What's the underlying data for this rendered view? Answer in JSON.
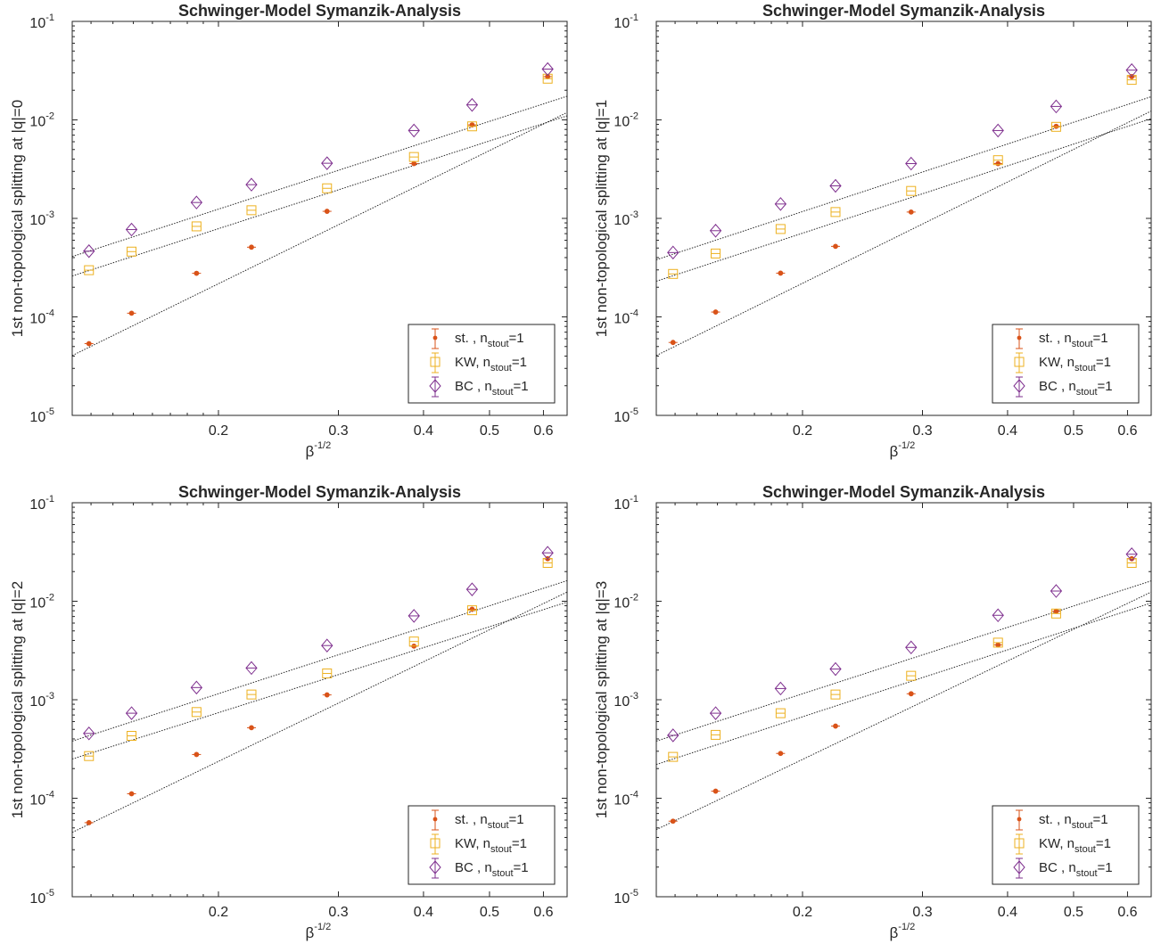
{
  "chart_data": [
    {
      "type": "scatter",
      "title": "Schwinger-Model Symanzik-Analysis",
      "xlabel_base": "β",
      "xlabel_exp": "-1/2",
      "ylabel": "1st non-topological splitting at |q|=0",
      "xscale": "log",
      "yscale": "log",
      "xlim": [
        0.122,
        0.65
      ],
      "ylim": [
        1e-05,
        0.1
      ],
      "xticks": [
        0.2,
        0.3,
        0.4,
        0.5,
        0.6
      ],
      "xtick_labels": [
        "0.2",
        "0.3",
        "0.4",
        "0.5",
        "0.6"
      ],
      "yticks": [
        1e-05,
        0.0001,
        0.001,
        0.01,
        0.1
      ],
      "ytick_base": [
        "10",
        "10",
        "10",
        "10",
        "10"
      ],
      "ytick_exp": [
        "-5",
        "-4",
        "-3",
        "-2",
        "-1"
      ],
      "grid": false,
      "legend_position": "bottom-right",
      "x": [
        0.1291,
        0.1491,
        0.1857,
        0.2236,
        0.2887,
        0.3873,
        0.4714,
        0.6086
      ],
      "series": [
        {
          "name": "st. , n",
          "name_sub": "stout",
          "name_tail": "=1",
          "marker": "dot",
          "color": "#d95319",
          "values": [
            5.35e-05,
            0.000109,
            0.000277,
            0.00051,
            0.00118,
            0.0036,
            0.0089,
            0.0275
          ],
          "fit": [
            4.05e-05,
            0.0119
          ]
        },
        {
          "name": "KW, n",
          "name_sub": "stout",
          "name_tail": "=1",
          "marker": "square",
          "color": "#edb120",
          "values": [
            0.000298,
            0.00046,
            0.00083,
            0.00121,
            0.00202,
            0.0042,
            0.0086,
            0.0262
          ],
          "fit": [
            0.00026,
            0.011
          ]
        },
        {
          "name": "BC , n",
          "name_sub": "stout",
          "name_tail": "=1",
          "marker": "diamond",
          "color": "#7e2f8e",
          "values": [
            0.000465,
            0.00077,
            0.00145,
            0.0022,
            0.00363,
            0.0078,
            0.0142,
            0.0328
          ],
          "fit": [
            0.00041,
            0.0174
          ]
        }
      ]
    },
    {
      "type": "scatter",
      "title": "Schwinger-Model Symanzik-Analysis",
      "xlabel_base": "β",
      "xlabel_exp": "-1/2",
      "ylabel": "1st non-topological splitting at |q|=1",
      "xscale": "log",
      "yscale": "log",
      "xlim": [
        0.122,
        0.65
      ],
      "ylim": [
        1e-05,
        0.1
      ],
      "xticks": [
        0.2,
        0.3,
        0.4,
        0.5,
        0.6
      ],
      "xtick_labels": [
        "0.2",
        "0.3",
        "0.4",
        "0.5",
        "0.6"
      ],
      "yticks": [
        1e-05,
        0.0001,
        0.001,
        0.01,
        0.1
      ],
      "ytick_base": [
        "10",
        "10",
        "10",
        "10",
        "10"
      ],
      "ytick_exp": [
        "-5",
        "-4",
        "-3",
        "-2",
        "-1"
      ],
      "grid": false,
      "legend_position": "bottom-right",
      "x": [
        0.1291,
        0.1491,
        0.1857,
        0.2236,
        0.2887,
        0.3873,
        0.4714,
        0.6086
      ],
      "series": [
        {
          "name": "st. , n",
          "name_sub": "stout",
          "name_tail": "=1",
          "marker": "dot",
          "color": "#d95319",
          "values": [
            5.5e-05,
            0.000112,
            0.000278,
            0.00052,
            0.00116,
            0.0036,
            0.0086,
            0.0275
          ],
          "fit": [
            4.05e-05,
            0.0123
          ]
        },
        {
          "name": "KW, n",
          "name_sub": "stout",
          "name_tail": "=1",
          "marker": "square",
          "color": "#edb120",
          "values": [
            0.000273,
            0.00044,
            0.00078,
            0.00116,
            0.0019,
            0.0039,
            0.0085,
            0.0255
          ],
          "fit": [
            0.00023,
            0.0103
          ]
        },
        {
          "name": "BC , n",
          "name_sub": "stout",
          "name_tail": "=1",
          "marker": "diamond",
          "color": "#7e2f8e",
          "values": [
            0.00045,
            0.00075,
            0.0014,
            0.00214,
            0.0036,
            0.0078,
            0.0137,
            0.032
          ],
          "fit": [
            0.00038,
            0.0172
          ]
        }
      ]
    },
    {
      "type": "scatter",
      "title": "Schwinger-Model Symanzik-Analysis",
      "xlabel_base": "β",
      "xlabel_exp": "-1/2",
      "ylabel": "1st non-topological splitting at |q|=2",
      "xscale": "log",
      "yscale": "log",
      "xlim": [
        0.122,
        0.65
      ],
      "ylim": [
        1e-05,
        0.1
      ],
      "xticks": [
        0.2,
        0.3,
        0.4,
        0.5,
        0.6
      ],
      "xtick_labels": [
        "0.2",
        "0.3",
        "0.4",
        "0.5",
        "0.6"
      ],
      "yticks": [
        1e-05,
        0.0001,
        0.001,
        0.01,
        0.1
      ],
      "ytick_base": [
        "10",
        "10",
        "10",
        "10",
        "10"
      ],
      "ytick_exp": [
        "-5",
        "-4",
        "-3",
        "-2",
        "-1"
      ],
      "grid": false,
      "legend_position": "bottom-right",
      "x": [
        0.1291,
        0.1491,
        0.1857,
        0.2236,
        0.2887,
        0.3873,
        0.4714,
        0.6086
      ],
      "series": [
        {
          "name": "st. , n",
          "name_sub": "stout",
          "name_tail": "=1",
          "marker": "dot",
          "color": "#d95319",
          "values": [
            5.65e-05,
            0.000111,
            0.000278,
            0.00052,
            0.00112,
            0.0035,
            0.0083,
            0.027
          ],
          "fit": [
            4.5e-05,
            0.0124
          ]
        },
        {
          "name": "KW, n",
          "name_sub": "stout",
          "name_tail": "=1",
          "marker": "square",
          "color": "#edb120",
          "values": [
            0.000268,
            0.00043,
            0.00075,
            0.00113,
            0.00185,
            0.0039,
            0.0081,
            0.0245
          ],
          "fit": [
            0.00025,
            0.0098
          ]
        },
        {
          "name": "BC , n",
          "name_sub": "stout",
          "name_tail": "=1",
          "marker": "diamond",
          "color": "#7e2f8e",
          "values": [
            0.000455,
            0.00073,
            0.00133,
            0.0021,
            0.00355,
            0.0071,
            0.0132,
            0.031
          ],
          "fit": [
            0.00038,
            0.0162
          ]
        }
      ]
    },
    {
      "type": "scatter",
      "title": "Schwinger-Model Symanzik-Analysis",
      "xlabel_base": "β",
      "xlabel_exp": "-1/2",
      "ylabel": "1st non-topological splitting at |q|=3",
      "xscale": "log",
      "yscale": "log",
      "xlim": [
        0.122,
        0.65
      ],
      "ylim": [
        1e-05,
        0.1
      ],
      "xticks": [
        0.2,
        0.3,
        0.4,
        0.5,
        0.6
      ],
      "xtick_labels": [
        "0.2",
        "0.3",
        "0.4",
        "0.5",
        "0.6"
      ],
      "yticks": [
        1e-05,
        0.0001,
        0.001,
        0.01,
        0.1
      ],
      "ytick_base": [
        "10",
        "10",
        "10",
        "10",
        "10"
      ],
      "ytick_exp": [
        "-5",
        "-4",
        "-3",
        "-2",
        "-1"
      ],
      "grid": false,
      "legend_position": "bottom-right",
      "x": [
        0.1291,
        0.1491,
        0.1857,
        0.2236,
        0.2887,
        0.3873,
        0.4714,
        0.6086
      ],
      "series": [
        {
          "name": "st. , n",
          "name_sub": "stout",
          "name_tail": "=1",
          "marker": "dot",
          "color": "#d95319",
          "values": [
            5.85e-05,
            0.000118,
            0.000285,
            0.00054,
            0.00115,
            0.0036,
            0.0079,
            0.027
          ],
          "fit": [
            4.8e-05,
            0.0124
          ]
        },
        {
          "name": "KW, n",
          "name_sub": "stout",
          "name_tail": "=1",
          "marker": "square",
          "color": "#edb120",
          "values": [
            0.000263,
            0.00044,
            0.00073,
            0.00113,
            0.00175,
            0.0038,
            0.0075,
            0.0245
          ],
          "fit": [
            0.00022,
            0.0096
          ]
        },
        {
          "name": "BC , n",
          "name_sub": "stout",
          "name_tail": "=1",
          "marker": "diamond",
          "color": "#7e2f8e",
          "values": [
            0.000435,
            0.00073,
            0.0013,
            0.00205,
            0.0034,
            0.0072,
            0.0127,
            0.03
          ],
          "fit": [
            0.00038,
            0.0161
          ]
        }
      ]
    }
  ]
}
